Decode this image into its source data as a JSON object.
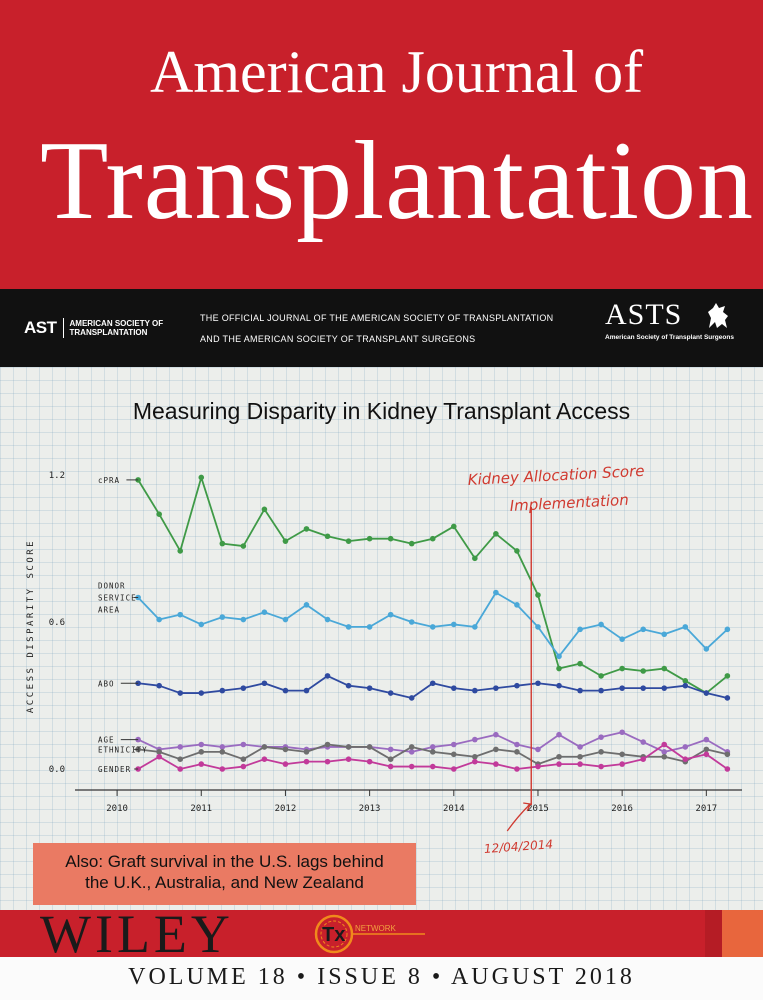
{
  "journal": {
    "title_line1": "American Journal of",
    "title_line2": "Transplantation"
  },
  "band": {
    "ast_mark": "AST",
    "ast_name_line1": "AMERICAN SOCIETY OF",
    "ast_name_line2": "TRANSPLANTATION",
    "official_line1": "THE OFFICIAL JOURNAL OF THE AMERICAN SOCIETY OF TRANSPLANTATION",
    "official_line2": "AND THE AMERICAN SOCIETY OF TRANSPLANT SURGEONS",
    "asts_mark": "ASTS",
    "asts_sub": "American Society of Transplant Surgeons"
  },
  "cover_note": {
    "line1": "Also: Graft survival in the U.S. lags behind",
    "line2": "the U.K., Australia, and New Zealand"
  },
  "footer": {
    "publisher": "WILEY",
    "tx_mark": "Tx",
    "tx_word": "NETWORK",
    "issue_line": "VOLUME 18 • ISSUE 8 • AUGUST 2018"
  },
  "colors": {
    "red": "#c8202b",
    "cpra": "#3f9a47",
    "dsa": "#4aa8d8",
    "abo": "#2f4aa0",
    "age": "#9a6bc0",
    "ethnicity": "#6e6e6e",
    "gender": "#c23a9a",
    "annotation": "#d03a30"
  },
  "chart_data": {
    "type": "line",
    "title": "Measuring Disparity in Kidney Transplant Access",
    "ylabel": "ACCESS DISPARITY SCORE",
    "xlabel": "",
    "ylim": [
      0,
      1.2
    ],
    "xlim": [
      2009.5,
      2017.4
    ],
    "yticks": [
      "1.2",
      "0.6",
      "0.0"
    ],
    "xticks": [
      "2010",
      "2011",
      "2012",
      "2013",
      "2014",
      "2015",
      "2016",
      "2017"
    ],
    "annotation": {
      "x": 2014.92,
      "text_line1": "Kidney Allocation Score",
      "text_line2": "Implementation",
      "date_label": "12/04/2014"
    },
    "x": [
      2010.25,
      2010.5,
      2010.75,
      2011.0,
      2011.25,
      2011.5,
      2011.75,
      2012.0,
      2012.25,
      2012.5,
      2012.75,
      2013.0,
      2013.25,
      2013.5,
      2013.75,
      2014.0,
      2014.25,
      2014.5,
      2014.75,
      2015.0,
      2015.25,
      2015.5,
      2015.75,
      2016.0,
      2016.25,
      2016.5,
      2016.75,
      2017.0,
      2017.25
    ],
    "series": [
      {
        "name": "cPRA",
        "values": [
          1.18,
          1.04,
          0.89,
          1.19,
          0.92,
          0.91,
          1.06,
          0.93,
          0.98,
          0.95,
          0.93,
          0.94,
          0.94,
          0.92,
          0.94,
          0.99,
          0.86,
          0.96,
          0.89,
          0.71,
          0.41,
          0.43,
          0.38,
          0.41,
          0.4,
          0.41,
          0.36,
          0.31,
          0.38
        ]
      },
      {
        "name": "DONOR SERVICE AREA",
        "values": [
          0.7,
          0.61,
          0.63,
          0.59,
          0.62,
          0.61,
          0.64,
          0.61,
          0.67,
          0.61,
          0.58,
          0.58,
          0.63,
          0.6,
          0.58,
          0.59,
          0.58,
          0.72,
          0.67,
          0.58,
          0.46,
          0.57,
          0.59,
          0.53,
          0.57,
          0.55,
          0.58,
          0.49,
          0.57
        ]
      },
      {
        "name": "ABO",
        "values": [
          0.35,
          0.34,
          0.31,
          0.31,
          0.32,
          0.33,
          0.35,
          0.32,
          0.32,
          0.38,
          0.34,
          0.33,
          0.31,
          0.29,
          0.35,
          0.33,
          0.32,
          0.33,
          0.34,
          0.35,
          0.34,
          0.32,
          0.32,
          0.33,
          0.33,
          0.33,
          0.34,
          0.31,
          0.29
        ]
      },
      {
        "name": "AGE",
        "values": [
          0.12,
          0.08,
          0.09,
          0.1,
          0.09,
          0.1,
          0.09,
          0.09,
          0.08,
          0.09,
          0.09,
          0.09,
          0.08,
          0.07,
          0.09,
          0.1,
          0.12,
          0.14,
          0.1,
          0.08,
          0.14,
          0.09,
          0.13,
          0.15,
          0.11,
          0.07,
          0.09,
          0.12,
          0.07
        ]
      },
      {
        "name": "ETHNICITY",
        "values": [
          0.08,
          0.07,
          0.04,
          0.07,
          0.07,
          0.04,
          0.09,
          0.08,
          0.07,
          0.1,
          0.09,
          0.09,
          0.04,
          0.09,
          0.07,
          0.06,
          0.05,
          0.08,
          0.07,
          0.02,
          0.05,
          0.05,
          0.07,
          0.06,
          0.05,
          0.05,
          0.03,
          0.08,
          0.06
        ]
      },
      {
        "name": "GENDER",
        "values": [
          0.0,
          0.05,
          0.0,
          0.02,
          0.0,
          0.01,
          0.04,
          0.02,
          0.03,
          0.03,
          0.04,
          0.03,
          0.01,
          0.01,
          0.01,
          0.0,
          0.03,
          0.02,
          0.0,
          0.01,
          0.02,
          0.02,
          0.01,
          0.02,
          0.04,
          0.1,
          0.04,
          0.06,
          0.0
        ]
      }
    ],
    "series_labels": [
      "cPRA",
      "DONOR",
      "SERVICE",
      "AREA",
      "ABO",
      "AGE",
      "ETHNICITY",
      "GENDER"
    ],
    "grid": true
  }
}
